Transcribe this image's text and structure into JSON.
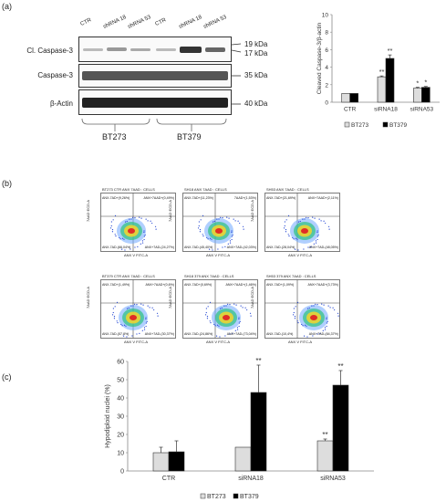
{
  "panel_a": {
    "label": "(a)",
    "lanes": [
      "CTR",
      "shRNA 18",
      "shRNA 53",
      "CTR",
      "shRNA 18",
      "shRNA 53"
    ],
    "rows": [
      "Cl. Caspase-3",
      "Caspase-3",
      "β-Actin"
    ],
    "mw": [
      "19 kDa",
      "17 kDa",
      "35 kDa",
      "40 kDa"
    ],
    "groups": [
      "BT273",
      "BT379"
    ]
  },
  "chart_a": {
    "type": "bar",
    "ylabel": "Cleaved Caspase-3/β-actin",
    "ylim": [
      0,
      10
    ],
    "yticks": [
      "0",
      "2",
      "4",
      "6",
      "8",
      "10"
    ],
    "categories": [
      "CTR",
      "siRNA18",
      "siRNA53"
    ],
    "series": [
      {
        "name": "BT273",
        "values": [
          1,
          2.9,
          1.6
        ],
        "color": "#dddddd"
      },
      {
        "name": "BT379",
        "values": [
          1,
          5.0,
          1.7
        ],
        "color": "#000000"
      }
    ],
    "errors": [
      [
        0,
        0.1,
        0.1
      ],
      [
        0,
        0.4,
        0.1
      ]
    ],
    "annotations": [
      [
        "",
        "**",
        "*"
      ],
      [
        "",
        "**",
        "*"
      ]
    ],
    "legend": [
      "BT273",
      "BT379"
    ]
  },
  "panel_b": {
    "label": "(b)",
    "plots": [
      {
        "title": "BT273 CTR ANX 7AAD : CELLS",
        "q1": "ANX-7AD+(9,26%)",
        "q2": "ANX+7AAD+(0,49%)",
        "q3": "ANX-7AD-(66,04%)",
        "q4": "ANX+7AD-(24,27%)"
      },
      {
        "title": "SH18 ANX 7AAD : CELLS",
        "q1": "ANX-7AD+(11,23%)",
        "q2": "7AAD+(1,53%)",
        "q3": "ANX-7AD-(45,40%)",
        "q4": "ANX+7AD-(42,03%)"
      },
      {
        "title": "SH53 ANX 7AAD : CELLS",
        "q1": "ANX-7AD+(21,69%)",
        "q2": "ANX+7AAD+(2,11%)",
        "q3": "ANX-7AD-(28,04%)",
        "q4": "ANX+7AD-(48,05%)"
      },
      {
        "title": "BT379 CTR ANX 7AAD : CELLS",
        "q1": "ANX-7AD+(1,49%)",
        "q2": "ANX+7AAD+(0,6%)",
        "q3": "ANX-7AD-(57,8%)",
        "q4": "ANX+7AD-(30,37%)"
      },
      {
        "title": "SH18 379 ANX 7AAD : CELLS",
        "q1": "ANX-7AD+(0,69%)",
        "q2": "ANX+7AAD+(1,46%)",
        "q3": "ANX-7AD-(24,86%)",
        "q4": "ANX+7AD-(73,04%)"
      },
      {
        "title": "SH53 379 ANX 7AAD : CELLS",
        "q1": "ANX-7AD+(1,09%)",
        "q2": "ANX+7AAD+(3,73%)",
        "q3": "ANX-7AD-(10,4%)",
        "q4": "ANX+7AD-(84,37%)"
      }
    ],
    "xlabel": "ANX V FITC-A",
    "ylabel": "7AAD ECD-A"
  },
  "chart_data": {
    "type": "bar",
    "ylabel": "Hypodiploid nuclei (%)",
    "ylim": [
      0,
      60
    ],
    "yticks": [
      "0",
      "10",
      "20",
      "30",
      "40",
      "50",
      "60"
    ],
    "categories": [
      "CTR",
      "siRNA18",
      "siRNA53"
    ],
    "series": [
      {
        "name": "BT273",
        "values": [
          10,
          13,
          16.5
        ],
        "color": "#dddddd"
      },
      {
        "name": "BT379",
        "values": [
          10.5,
          43,
          47
        ],
        "color": "#000000"
      }
    ],
    "errors": [
      [
        3,
        0,
        1
      ],
      [
        6,
        15,
        8
      ]
    ],
    "annotations": [
      [
        "",
        "",
        "**"
      ],
      [
        "",
        "**",
        "**"
      ]
    ],
    "legend": [
      "BT273",
      "BT379"
    ]
  },
  "panel_c": {
    "label": "(c)"
  }
}
